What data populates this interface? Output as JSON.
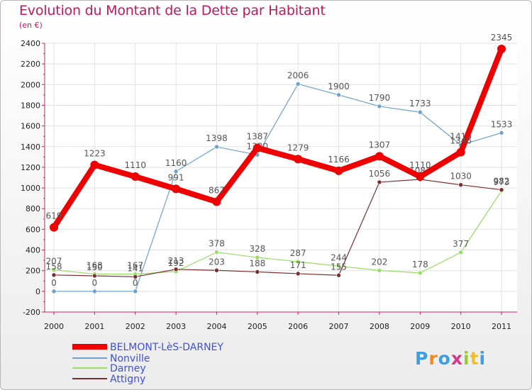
{
  "title": "Evolution du Montant de la Dette par Habitant",
  "unit_label": "(en €)",
  "logo_text": "Proxiti",
  "chart_data": {
    "type": "line",
    "x": [
      "2000",
      "2001",
      "2002",
      "2003",
      "2004",
      "2005",
      "2006",
      "2007",
      "2008",
      "2009",
      "2010",
      "2011"
    ],
    "ylim": [
      -200,
      2400
    ],
    "yticks": [
      -200,
      0,
      200,
      400,
      600,
      800,
      1000,
      1200,
      1400,
      1600,
      1800,
      2000,
      2200,
      2400
    ],
    "grid": true,
    "legend_position": "bottom-left",
    "series": [
      {
        "name": "BELMONT-LèS-DARNEY",
        "color": "#ee0000",
        "values": [
          619,
          1223,
          1110,
          991,
          867,
          1387,
          1279,
          1166,
          1307,
          1110,
          1346,
          2345
        ]
      },
      {
        "name": "Nonville",
        "color": "#6ea2cc",
        "values": [
          0,
          0,
          0,
          1160,
          1398,
          1320,
          2006,
          1900,
          1790,
          1733,
          1416,
          1533
        ]
      },
      {
        "name": "Darney",
        "color": "#99dd66",
        "values": [
          207,
          168,
          167,
          192,
          378,
          328,
          287,
          244,
          202,
          178,
          377,
          973
        ]
      },
      {
        "name": "Attigny",
        "color": "#7a2e2e",
        "values": [
          158,
          150,
          141,
          213,
          203,
          188,
          171,
          155,
          1056,
          1083,
          1030,
          982
        ]
      }
    ]
  }
}
